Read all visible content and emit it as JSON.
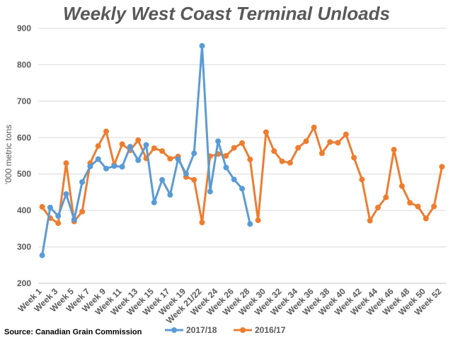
{
  "source": "Source: Canadian Grain Commission",
  "colors": {
    "s1": "#5B9BD5",
    "s2": "#ED7D31",
    "grid": "#D9D9D9",
    "axis": "#BFBFBF"
  },
  "chart_data": {
    "type": "line",
    "title": "Weekly West Coast Terminal Unloads",
    "xlabel": "",
    "ylabel": "'000 metric tons",
    "ylim": [
      200,
      900
    ],
    "yticks": [
      200,
      300,
      400,
      500,
      600,
      700,
      800,
      900
    ],
    "grid": true,
    "legend": "bottom",
    "x_tick_labels": [
      "Week 1",
      "Week 3",
      "Week 5",
      "Week 7",
      "Week 9",
      "Week 11",
      "Week 13",
      "Week 15",
      "Week 17",
      "Week 19",
      "Week 21/22",
      "Week 24",
      "Week 26",
      "Week 28",
      "Week 30",
      "Week 32",
      "Week 34",
      "Week 36",
      "Week 38",
      "Week 40",
      "Week 42",
      "Week 44",
      "Week 46",
      "Week 48",
      "Week 50",
      "Week 52"
    ],
    "series": [
      {
        "name": "2017/18",
        "color": "#5B9BD5",
        "values": [
          277,
          408,
          385,
          445,
          375,
          478,
          521,
          541,
          515,
          522,
          520,
          575,
          538,
          580,
          422,
          484,
          443,
          541,
          501,
          557,
          852,
          452,
          590,
          518,
          485,
          460,
          363
        ]
      },
      {
        "name": "2016/17",
        "color": "#ED7D31",
        "values": [
          410,
          379,
          365,
          530,
          370,
          397,
          530,
          577,
          617,
          525,
          582,
          565,
          593,
          543,
          571,
          563,
          542,
          548,
          492,
          484,
          367,
          549,
          555,
          550,
          572,
          585,
          540,
          373,
          615,
          563,
          535,
          531,
          572,
          590,
          628,
          557,
          588,
          586,
          609,
          545,
          485,
          372,
          408,
          436,
          567,
          467,
          421,
          411,
          378,
          411,
          520
        ]
      }
    ]
  }
}
